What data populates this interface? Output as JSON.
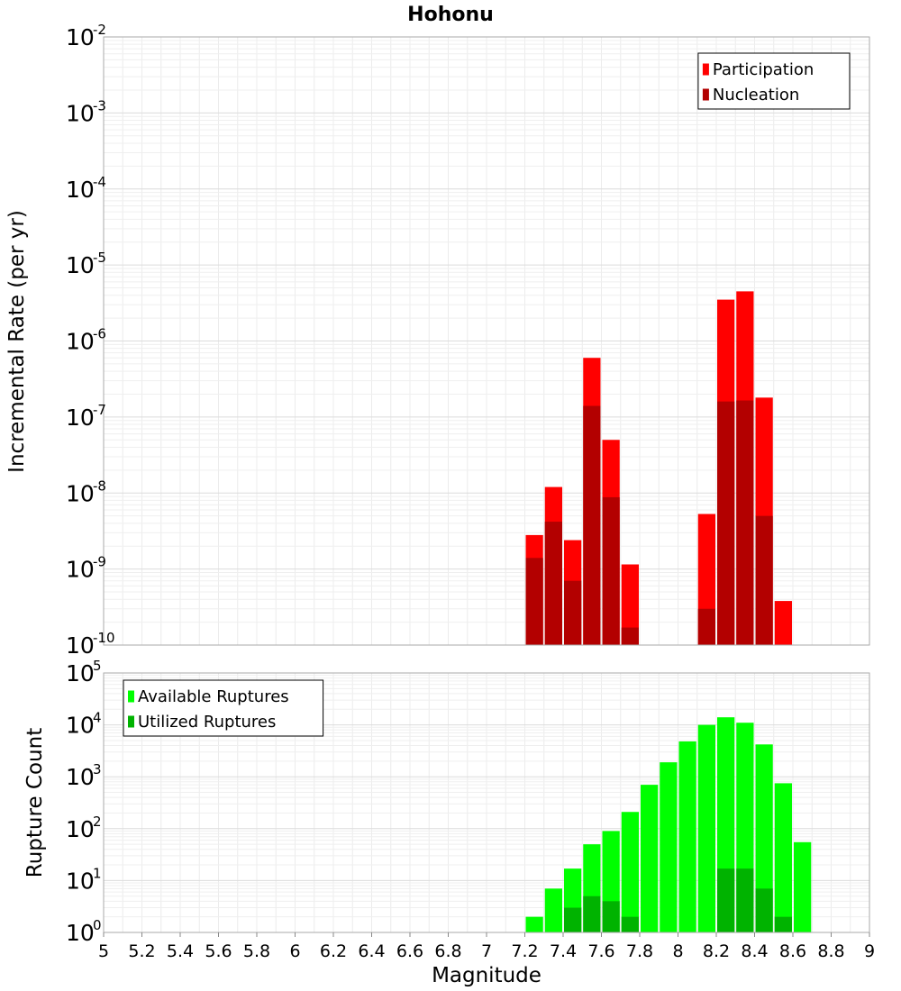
{
  "chart_data": {
    "type": "bar",
    "title": "Hohonu",
    "xlabel": "Magnitude",
    "xlim": [
      5,
      9
    ],
    "xticks": [
      5,
      5.2,
      5.4,
      5.6,
      5.8,
      6,
      6.2,
      6.4,
      6.6,
      6.8,
      7,
      7.2,
      7.4,
      7.6,
      7.8,
      8,
      8.2,
      8.4,
      8.6,
      8.8,
      9
    ],
    "xtick_labels": [
      "5",
      "5.2",
      "5.4",
      "5.6",
      "5.8",
      "6",
      "6.2",
      "6.4",
      "6.6",
      "6.8",
      "7",
      "7.2",
      "7.4",
      "7.6",
      "7.8",
      "8",
      "8.2",
      "8.4",
      "8.6",
      "8.8",
      "9"
    ],
    "bin_width": 0.1,
    "grid": true,
    "panels": [
      {
        "ylabel": "Incremental Rate (per yr)",
        "yscale": "log",
        "ylim_exp": [
          -10,
          -2
        ],
        "ytick_exponents": [
          "-10",
          "-9",
          "-8",
          "-7",
          "-6",
          "-5",
          "-4",
          "-3",
          "-2"
        ],
        "legend_position": "top-right",
        "series": [
          {
            "name": "Participation",
            "color": "#ff0000",
            "x": [
              7.25,
              7.35,
              7.45,
              7.55,
              7.65,
              7.75,
              8.15,
              8.25,
              8.35,
              8.45,
              8.55
            ],
            "values": [
              2.8e-09,
              1.2e-08,
              2.4e-09,
              6e-07,
              5e-08,
              1.15e-09,
              5.3e-09,
              3.5e-06,
              4.5e-06,
              1.8e-07,
              3.8e-10
            ]
          },
          {
            "name": "Nucleation",
            "color": "#b30000",
            "x": [
              7.25,
              7.35,
              7.45,
              7.55,
              7.65,
              7.75,
              8.15,
              8.25,
              8.35,
              8.45
            ],
            "values": [
              1.4e-09,
              4.2e-09,
              7e-10,
              1.4e-07,
              8.8e-09,
              1.7e-10,
              3e-10,
              1.6e-07,
              1.65e-07,
              5e-09
            ]
          }
        ]
      },
      {
        "ylabel": "Rupture Count",
        "yscale": "log",
        "ylim_exp": [
          0,
          5
        ],
        "ytick_exponents": [
          "0",
          "1",
          "2",
          "3",
          "4",
          "5"
        ],
        "legend_position": "top-left",
        "series": [
          {
            "name": "Available Ruptures",
            "color": "#00ff00",
            "x": [
              6.95,
              7.25,
              7.35,
              7.45,
              7.55,
              7.65,
              7.75,
              7.85,
              7.95,
              8.05,
              8.15,
              8.25,
              8.35,
              8.45,
              8.55,
              8.65
            ],
            "values": [
              1,
              2,
              7,
              17,
              50,
              90,
              210,
              700,
              1900,
              4800,
              10000,
              14000,
              11000,
              4200,
              750,
              55
            ]
          },
          {
            "name": "Utilized Ruptures",
            "color": "#00b300",
            "x": [
              7.25,
              7.35,
              7.45,
              7.55,
              7.65,
              7.75,
              8.15,
              8.25,
              8.35,
              8.45,
              8.55,
              8.65
            ],
            "values": [
              1,
              1,
              3,
              5,
              4,
              2,
              1,
              17,
              17,
              7,
              2,
              1
            ]
          }
        ]
      }
    ]
  }
}
